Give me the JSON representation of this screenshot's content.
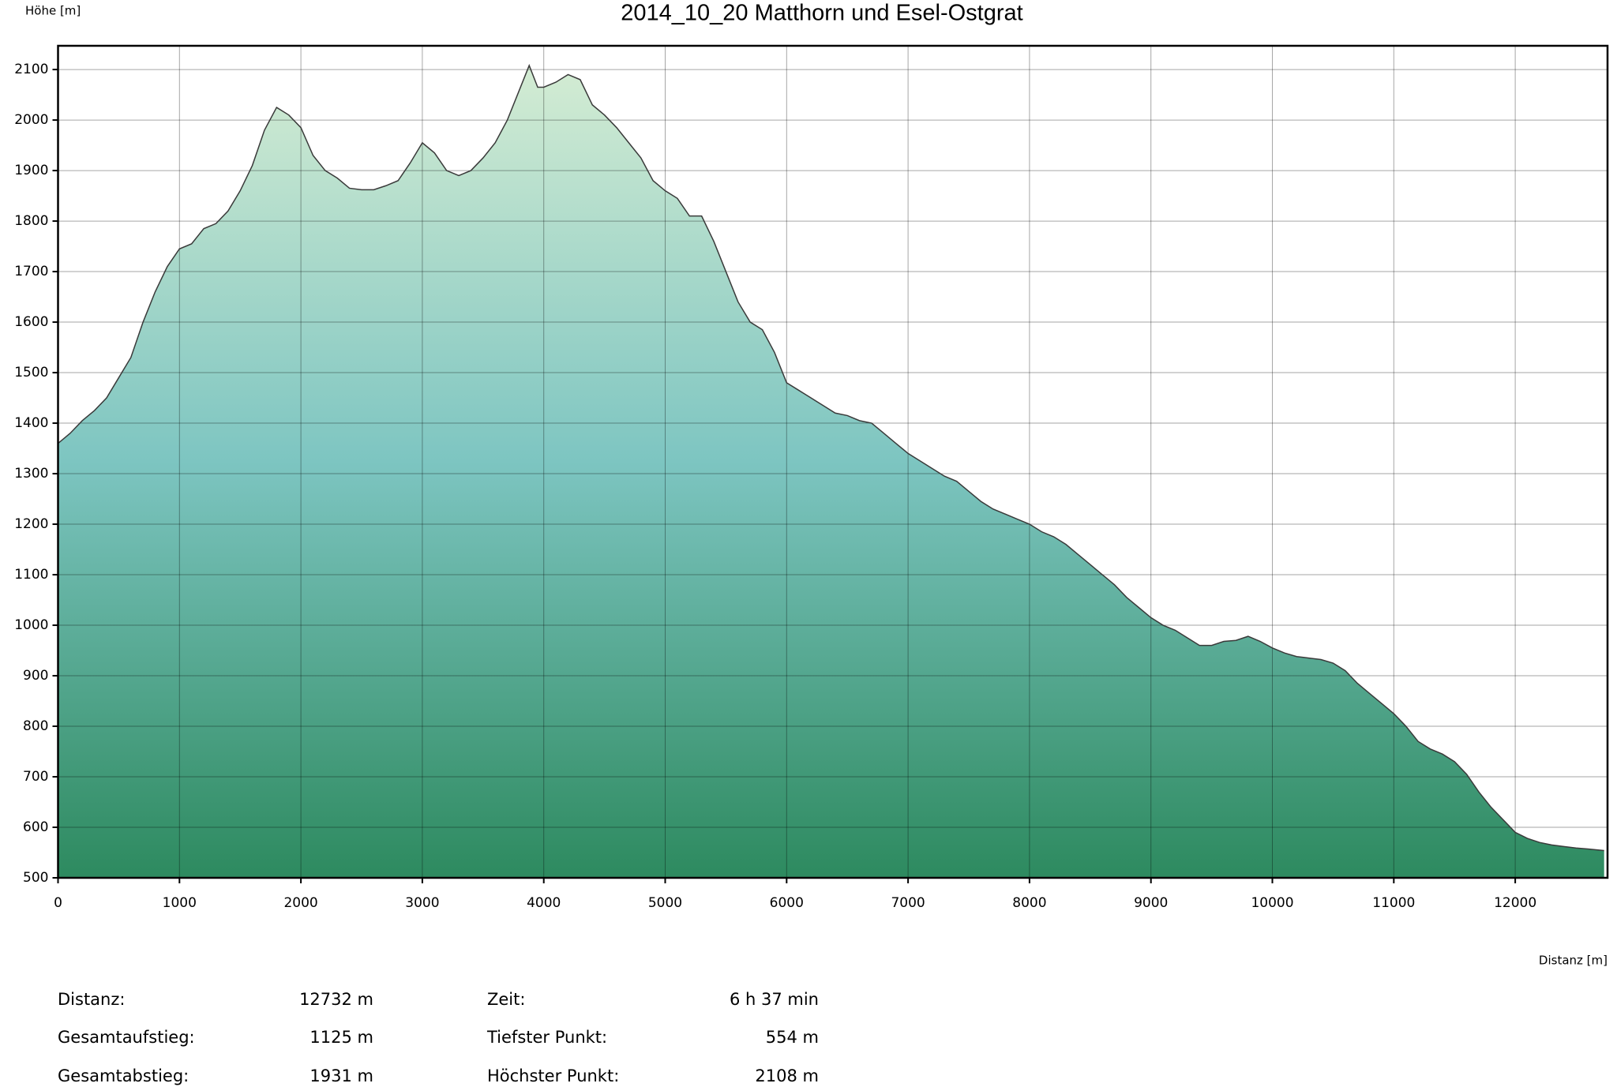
{
  "chart_data": {
    "type": "area",
    "title": "2014_10_20 Matthorn und Esel-Ostgrat",
    "y_label": "Höhe [m]",
    "x_label": "Distanz [m]",
    "x": [
      0,
      100,
      200,
      300,
      400,
      500,
      600,
      700,
      800,
      900,
      1000,
      1100,
      1200,
      1300,
      1400,
      1500,
      1600,
      1700,
      1800,
      1900,
      2000,
      2100,
      2200,
      2300,
      2400,
      2500,
      2600,
      2700,
      2800,
      2900,
      3000,
      3100,
      3200,
      3300,
      3400,
      3500,
      3600,
      3700,
      3800,
      3880,
      3950,
      4000,
      4100,
      4200,
      4300,
      4400,
      4500,
      4600,
      4700,
      4800,
      4900,
      5000,
      5100,
      5200,
      5300,
      5400,
      5500,
      5600,
      5700,
      5800,
      5900,
      6000,
      6100,
      6200,
      6300,
      6400,
      6500,
      6600,
      6700,
      6800,
      6900,
      7000,
      7100,
      7200,
      7300,
      7400,
      7500,
      7600,
      7700,
      7800,
      7900,
      8000,
      8100,
      8200,
      8300,
      8400,
      8500,
      8600,
      8700,
      8800,
      8900,
      9000,
      9100,
      9200,
      9300,
      9400,
      9500,
      9600,
      9700,
      9800,
      9900,
      10000,
      10100,
      10200,
      10300,
      10400,
      10500,
      10600,
      10700,
      10800,
      10900,
      11000,
      11100,
      11200,
      11300,
      11400,
      11500,
      11600,
      11700,
      11800,
      11900,
      12000,
      12100,
      12200,
      12300,
      12400,
      12500,
      12600,
      12732
    ],
    "values": [
      1360,
      1380,
      1405,
      1425,
      1450,
      1490,
      1530,
      1600,
      1660,
      1710,
      1745,
      1755,
      1785,
      1795,
      1820,
      1860,
      1910,
      1980,
      2025,
      2010,
      1985,
      1930,
      1900,
      1885,
      1865,
      1862,
      1862,
      1870,
      1880,
      1915,
      1955,
      1935,
      1900,
      1890,
      1900,
      1925,
      1955,
      2000,
      2060,
      2108,
      2065,
      2065,
      2075,
      2090,
      2080,
      2030,
      2010,
      1985,
      1955,
      1925,
      1880,
      1860,
      1845,
      1810,
      1810,
      1760,
      1700,
      1640,
      1600,
      1585,
      1540,
      1480,
      1465,
      1450,
      1435,
      1420,
      1415,
      1405,
      1400,
      1380,
      1360,
      1340,
      1325,
      1310,
      1295,
      1285,
      1265,
      1245,
      1230,
      1220,
      1210,
      1200,
      1185,
      1175,
      1160,
      1140,
      1120,
      1100,
      1080,
      1055,
      1035,
      1015,
      1000,
      990,
      975,
      960,
      960,
      968,
      970,
      978,
      968,
      955,
      945,
      938,
      935,
      932,
      925,
      910,
      885,
      865,
      845,
      825,
      800,
      770,
      755,
      745,
      730,
      705,
      670,
      640,
      615,
      590,
      578,
      570,
      565,
      562,
      559,
      557,
      554
    ],
    "line_color": "#3a3a3a",
    "fill_gradient": [
      "#d8eed4",
      "#7dc5c1",
      "#2d8a5f"
    ],
    "xlim": [
      0,
      12760
    ],
    "ylim": [
      500,
      2147
    ],
    "xticks": [
      0,
      1000,
      2000,
      3000,
      4000,
      5000,
      6000,
      7000,
      8000,
      9000,
      10000,
      11000,
      12000
    ],
    "yticks": [
      500,
      600,
      700,
      800,
      900,
      1000,
      1100,
      1200,
      1300,
      1400,
      1500,
      1600,
      1700,
      1800,
      1900,
      2000,
      2100
    ],
    "grid": true,
    "summary": [
      {
        "label": "Distanz:",
        "value": "12732 m"
      },
      {
        "label": "Zeit:",
        "value": "6 h 37 min"
      },
      {
        "label": "Gesamtaufstieg:",
        "value": "1125 m"
      },
      {
        "label": "Tiefster Punkt:",
        "value": "554 m"
      },
      {
        "label": "Gesamtabstieg:",
        "value": "1931 m"
      },
      {
        "label": "Höchster Punkt:",
        "value": "2108 m"
      }
    ]
  }
}
